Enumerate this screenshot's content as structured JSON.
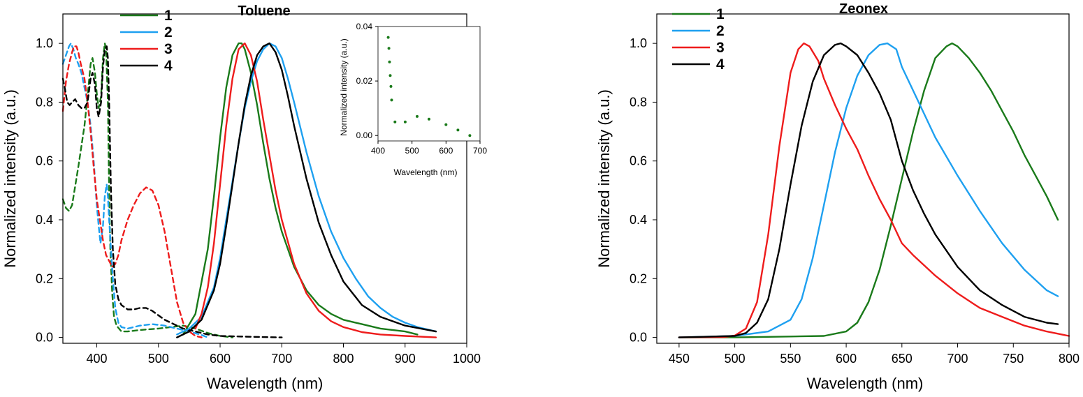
{
  "chart_data": [
    {
      "type": "line",
      "title": "Toluene",
      "xlabel": "Wavelength (nm)",
      "ylabel": "Normalized intensity (a.u.)",
      "xlim": [
        345,
        1000
      ],
      "ylim": [
        -0.02,
        1.1
      ],
      "xticks": [
        400,
        500,
        600,
        700,
        800,
        900,
        1000
      ],
      "yticks": [
        0.0,
        0.2,
        0.4,
        0.6,
        0.8,
        1.0
      ],
      "xtick_labels": [
        "400",
        "500",
        "600",
        "700",
        "800",
        "900",
        "1000"
      ],
      "ytick_labels": [
        "0.0",
        "0.2",
        "0.4",
        "0.6",
        "0.8",
        "1.0"
      ],
      "legend_position": "top-left",
      "legend": [
        {
          "label": "1",
          "color": "#1a7a1a"
        },
        {
          "label": "2",
          "color": "#1ea0f0"
        },
        {
          "label": "3",
          "color": "#ee1c1c"
        },
        {
          "label": "4",
          "color": "#000000"
        }
      ],
      "series": [
        {
          "name": "1",
          "kind": "absorption",
          "style": "dashed",
          "color": "#1a7a1a",
          "x": [
            345,
            350,
            355,
            360,
            370,
            380,
            385,
            390,
            393,
            397,
            400,
            403,
            407,
            410,
            413,
            415,
            418,
            420,
            422,
            425,
            428,
            432,
            440,
            450,
            470,
            500,
            520,
            540,
            560,
            580,
            600,
            620
          ],
          "y": [
            0.47,
            0.44,
            0.43,
            0.45,
            0.58,
            0.72,
            0.82,
            0.93,
            0.95,
            0.9,
            0.83,
            0.78,
            0.82,
            0.95,
            1.0,
            0.98,
            0.8,
            0.5,
            0.3,
            0.15,
            0.07,
            0.04,
            0.02,
            0.02,
            0.025,
            0.03,
            0.035,
            0.04,
            0.03,
            0.015,
            0.005,
            0.0
          ]
        },
        {
          "name": "2",
          "kind": "absorption",
          "style": "dashed",
          "color": "#1ea0f0",
          "x": [
            345,
            350,
            355,
            358,
            362,
            366,
            370,
            375,
            380,
            385,
            390,
            395,
            400,
            403,
            406,
            410,
            413,
            416,
            418,
            420,
            423,
            426,
            430,
            435,
            440,
            450,
            470,
            490,
            510,
            530,
            550,
            570,
            580
          ],
          "y": [
            0.93,
            0.96,
            0.99,
            1.0,
            0.98,
            0.95,
            0.93,
            0.9,
            0.85,
            0.8,
            0.72,
            0.6,
            0.45,
            0.38,
            0.32,
            0.38,
            0.48,
            0.52,
            0.48,
            0.4,
            0.3,
            0.2,
            0.1,
            0.05,
            0.035,
            0.03,
            0.04,
            0.045,
            0.04,
            0.03,
            0.02,
            0.008,
            0.0
          ]
        },
        {
          "name": "3",
          "kind": "absorption",
          "style": "dashed",
          "color": "#ee1c1c",
          "x": [
            345,
            350,
            355,
            360,
            363,
            367,
            370,
            374,
            380,
            385,
            390,
            395,
            400,
            405,
            410,
            415,
            420,
            425,
            430,
            435,
            440,
            450,
            460,
            470,
            480,
            490,
            500,
            510,
            520,
            530,
            540,
            550,
            560,
            570
          ],
          "y": [
            0.77,
            0.87,
            0.93,
            0.97,
            0.99,
            0.99,
            0.97,
            0.93,
            0.88,
            0.8,
            0.7,
            0.58,
            0.47,
            0.4,
            0.33,
            0.28,
            0.26,
            0.24,
            0.25,
            0.28,
            0.33,
            0.4,
            0.45,
            0.49,
            0.51,
            0.5,
            0.45,
            0.36,
            0.24,
            0.12,
            0.05,
            0.02,
            0.005,
            0.0
          ]
        },
        {
          "name": "4",
          "kind": "absorption",
          "style": "dashed",
          "color": "#000000",
          "x": [
            345,
            348,
            352,
            356,
            360,
            365,
            370,
            375,
            380,
            385,
            390,
            393,
            397,
            400,
            403,
            407,
            410,
            413,
            416,
            418,
            420,
            423,
            426,
            430,
            435,
            440,
            450,
            460,
            470,
            480,
            490,
            500,
            510,
            520,
            530,
            540,
            560,
            580,
            600,
            650,
            700
          ],
          "y": [
            0.88,
            0.85,
            0.8,
            0.79,
            0.8,
            0.81,
            0.79,
            0.78,
            0.78,
            0.8,
            0.88,
            0.9,
            0.86,
            0.78,
            0.75,
            0.8,
            0.92,
            0.98,
            0.99,
            0.95,
            0.8,
            0.5,
            0.3,
            0.18,
            0.13,
            0.11,
            0.095,
            0.095,
            0.1,
            0.1,
            0.09,
            0.075,
            0.06,
            0.05,
            0.04,
            0.03,
            0.02,
            0.01,
            0.005,
            0.002,
            0.0
          ]
        },
        {
          "name": "1",
          "kind": "emission",
          "style": "solid",
          "color": "#1a7a1a",
          "x": [
            540,
            560,
            580,
            590,
            600,
            610,
            620,
            630,
            635,
            640,
            650,
            660,
            670,
            680,
            690,
            700,
            720,
            740,
            760,
            780,
            800,
            830,
            860,
            900,
            920
          ],
          "y": [
            0.01,
            0.08,
            0.3,
            0.48,
            0.68,
            0.85,
            0.96,
            1.0,
            1.0,
            0.98,
            0.9,
            0.79,
            0.66,
            0.54,
            0.44,
            0.36,
            0.24,
            0.16,
            0.11,
            0.08,
            0.06,
            0.045,
            0.03,
            0.02,
            0.01
          ]
        },
        {
          "name": "2",
          "kind": "emission",
          "style": "solid",
          "color": "#1ea0f0",
          "x": [
            530,
            550,
            570,
            590,
            600,
            610,
            620,
            630,
            640,
            650,
            660,
            670,
            680,
            690,
            700,
            710,
            720,
            740,
            760,
            780,
            800,
            820,
            840,
            860,
            880,
            900,
            920,
            950
          ],
          "y": [
            0.01,
            0.03,
            0.07,
            0.17,
            0.27,
            0.4,
            0.53,
            0.66,
            0.78,
            0.87,
            0.94,
            0.98,
            1.0,
            0.99,
            0.95,
            0.88,
            0.8,
            0.63,
            0.48,
            0.36,
            0.27,
            0.2,
            0.14,
            0.1,
            0.07,
            0.05,
            0.035,
            0.02
          ]
        },
        {
          "name": "3",
          "kind": "emission",
          "style": "solid",
          "color": "#ee1c1c",
          "x": [
            560,
            570,
            580,
            590,
            600,
            610,
            620,
            630,
            640,
            650,
            660,
            670,
            680,
            690,
            700,
            720,
            740,
            760,
            780,
            800,
            830,
            860,
            900,
            950
          ],
          "y": [
            0.03,
            0.08,
            0.17,
            0.32,
            0.52,
            0.72,
            0.88,
            0.98,
            1.0,
            0.96,
            0.87,
            0.74,
            0.62,
            0.5,
            0.4,
            0.25,
            0.15,
            0.09,
            0.055,
            0.035,
            0.018,
            0.01,
            0.005,
            0.0
          ]
        },
        {
          "name": "4",
          "kind": "emission",
          "style": "solid",
          "color": "#000000",
          "x": [
            530,
            550,
            570,
            590,
            600,
            610,
            620,
            630,
            640,
            650,
            660,
            670,
            680,
            690,
            700,
            710,
            720,
            740,
            760,
            780,
            800,
            830,
            860,
            900,
            950
          ],
          "y": [
            0.0,
            0.02,
            0.06,
            0.16,
            0.25,
            0.38,
            0.52,
            0.66,
            0.79,
            0.89,
            0.96,
            0.99,
            1.0,
            0.97,
            0.91,
            0.82,
            0.72,
            0.54,
            0.39,
            0.28,
            0.19,
            0.11,
            0.07,
            0.04,
            0.02
          ]
        }
      ],
      "inset": {
        "type": "scatter",
        "xlabel": "Wavelength (nm)",
        "ylabel": "Normalized intensity (a.u.)",
        "xlim": [
          400,
          700
        ],
        "ylim": [
          -0.002,
          0.04
        ],
        "xticks": [
          400,
          500,
          600,
          700
        ],
        "yticks": [
          0.0,
          0.02,
          0.04
        ],
        "xtick_labels": [
          "400",
          "500",
          "600",
          "700"
        ],
        "ytick_labels": [
          "0.00",
          "0.02",
          "0.04"
        ],
        "color": "#1a7a1a",
        "x": [
          430,
          432,
          434,
          436,
          438,
          440,
          450,
          480,
          515,
          550,
          600,
          635,
          670
        ],
        "y": [
          0.036,
          0.032,
          0.027,
          0.022,
          0.018,
          0.013,
          0.005,
          0.005,
          0.007,
          0.006,
          0.004,
          0.002,
          0.0
        ]
      }
    },
    {
      "type": "line",
      "title": "Zeonex",
      "xlabel": "Wavelength (nm)",
      "ylabel": "Normalized intensity (a.u.)",
      "xlim": [
        430,
        800
      ],
      "ylim": [
        -0.02,
        1.1
      ],
      "xticks": [
        450,
        500,
        550,
        600,
        650,
        700,
        750,
        800
      ],
      "yticks": [
        0.0,
        0.2,
        0.4,
        0.6,
        0.8,
        1.0
      ],
      "xtick_labels": [
        "450",
        "500",
        "550",
        "600",
        "650",
        "700",
        "750",
        "800"
      ],
      "ytick_labels": [
        "0.0",
        "0.2",
        "0.4",
        "0.6",
        "0.8",
        "1.0"
      ],
      "legend_position": "top-left",
      "legend": [
        {
          "label": "1",
          "color": "#1a7a1a"
        },
        {
          "label": "2",
          "color": "#1ea0f0"
        },
        {
          "label": "3",
          "color": "#ee1c1c"
        },
        {
          "label": "4",
          "color": "#000000"
        }
      ],
      "series": [
        {
          "name": "1",
          "style": "solid",
          "color": "#1a7a1a",
          "x": [
            450,
            500,
            550,
            580,
            600,
            610,
            620,
            630,
            640,
            650,
            660,
            670,
            680,
            690,
            695,
            700,
            710,
            720,
            730,
            740,
            750,
            760,
            770,
            780,
            790
          ],
          "y": [
            0.0,
            0.0,
            0.003,
            0.005,
            0.02,
            0.05,
            0.12,
            0.23,
            0.38,
            0.54,
            0.7,
            0.84,
            0.95,
            0.99,
            1.0,
            0.99,
            0.95,
            0.9,
            0.84,
            0.77,
            0.7,
            0.62,
            0.55,
            0.48,
            0.4
          ]
        },
        {
          "name": "2",
          "style": "solid",
          "color": "#1ea0f0",
          "x": [
            450,
            500,
            530,
            550,
            560,
            570,
            580,
            590,
            600,
            610,
            620,
            630,
            637,
            645,
            650,
            660,
            670,
            680,
            700,
            720,
            740,
            760,
            780,
            790
          ],
          "y": [
            0.0,
            0.005,
            0.02,
            0.06,
            0.13,
            0.27,
            0.45,
            0.63,
            0.78,
            0.89,
            0.96,
            0.995,
            1.0,
            0.98,
            0.92,
            0.84,
            0.76,
            0.68,
            0.55,
            0.43,
            0.32,
            0.23,
            0.16,
            0.14
          ]
        },
        {
          "name": "3",
          "style": "solid",
          "color": "#ee1c1c",
          "x": [
            450,
            490,
            500,
            510,
            520,
            530,
            540,
            550,
            557,
            562,
            567,
            575,
            580,
            590,
            600,
            610,
            620,
            630,
            640,
            650,
            660,
            680,
            700,
            720,
            740,
            760,
            780,
            800
          ],
          "y": [
            0.0,
            0.001,
            0.006,
            0.03,
            0.12,
            0.35,
            0.65,
            0.9,
            0.98,
            1.0,
            0.99,
            0.94,
            0.88,
            0.79,
            0.71,
            0.64,
            0.55,
            0.47,
            0.4,
            0.32,
            0.28,
            0.21,
            0.15,
            0.1,
            0.07,
            0.04,
            0.02,
            0.005
          ]
        },
        {
          "name": "4",
          "style": "solid",
          "color": "#000000",
          "x": [
            450,
            500,
            510,
            520,
            530,
            540,
            550,
            560,
            570,
            580,
            590,
            595,
            600,
            610,
            620,
            630,
            640,
            650,
            660,
            670,
            680,
            700,
            720,
            740,
            760,
            780,
            790
          ],
          "y": [
            0.0,
            0.005,
            0.015,
            0.05,
            0.13,
            0.3,
            0.52,
            0.72,
            0.87,
            0.96,
            0.995,
            1.0,
            0.99,
            0.96,
            0.9,
            0.83,
            0.74,
            0.6,
            0.5,
            0.42,
            0.35,
            0.24,
            0.16,
            0.11,
            0.07,
            0.05,
            0.045
          ]
        }
      ]
    }
  ]
}
